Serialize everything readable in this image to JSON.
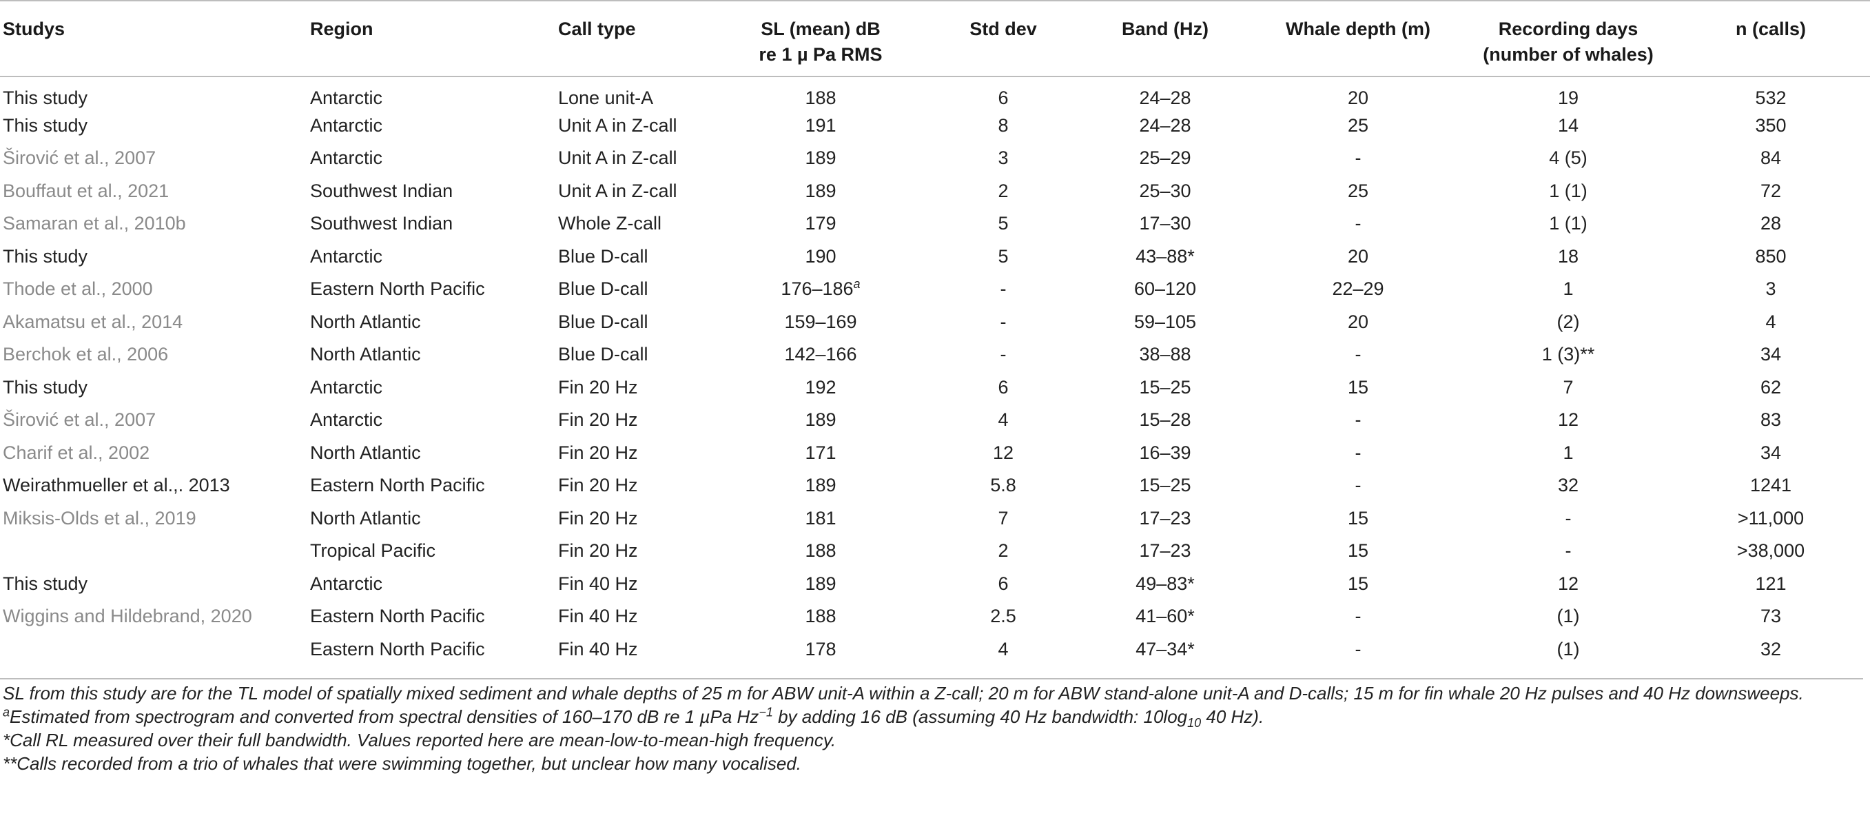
{
  "headers": [
    "Studys",
    "Region",
    "Call type",
    "SL (mean) dB re 1 µ Pa RMS",
    "Std dev",
    "Band (Hz)",
    "Whale depth (m)",
    "Recording days (number of whales)",
    "n (calls)"
  ],
  "header_lines": {
    "sl_line1": "SL (mean) dB",
    "sl_line2": "re 1 µ Pa RMS",
    "rec_line1": "Recording days",
    "rec_line2": "(number of whales)"
  },
  "rows": [
    {
      "study": "This study",
      "ref": false,
      "region": "Antarctic",
      "call": "Lone unit-A",
      "sl": "188",
      "sl_sup": "",
      "std": "6",
      "band": "24–28",
      "depth": "20",
      "days": "19",
      "n": "532"
    },
    {
      "study": "This study",
      "ref": false,
      "region": "Antarctic",
      "call": "Unit A in Z-call",
      "sl": "191",
      "sl_sup": "",
      "std": "8",
      "band": "24–28",
      "depth": "25",
      "days": "14",
      "n": "350"
    },
    {
      "study": "Širović et al., 2007",
      "ref": true,
      "region": "Antarctic",
      "call": "Unit A in Z-call",
      "sl": "189",
      "sl_sup": "",
      "std": "3",
      "band": "25–29",
      "depth": "-",
      "days": "4 (5)",
      "n": "84"
    },
    {
      "study": "Bouffaut et al., 2021",
      "ref": true,
      "region": "Southwest Indian",
      "call": "Unit A in Z-call",
      "sl": "189",
      "sl_sup": "",
      "std": "2",
      "band": "25–30",
      "depth": "25",
      "days": "1 (1)",
      "n": "72"
    },
    {
      "study": "Samaran et al., 2010b",
      "ref": true,
      "region": "Southwest Indian",
      "call": "Whole Z-call",
      "sl": "179",
      "sl_sup": "",
      "std": "5",
      "band": "17–30",
      "depth": "-",
      "days": "1 (1)",
      "n": "28"
    },
    {
      "study": "This study",
      "ref": false,
      "region": "Antarctic",
      "call": "Blue D-call",
      "sl": "190",
      "sl_sup": "",
      "std": "5",
      "band": "43–88*",
      "depth": "20",
      "days": "18",
      "n": "850"
    },
    {
      "study": "Thode et al., 2000",
      "ref": true,
      "region": "Eastern North Pacific",
      "call": "Blue D-call",
      "sl": "176–186",
      "sl_sup": "a",
      "std": "-",
      "band": "60–120",
      "depth": "22–29",
      "days": "1",
      "n": "3"
    },
    {
      "study": "Akamatsu et al., 2014",
      "ref": true,
      "region": "North Atlantic",
      "call": "Blue D-call",
      "sl": "159–169",
      "sl_sup": "",
      "std": "-",
      "band": "59–105",
      "depth": "20",
      "days": "(2)",
      "n": "4"
    },
    {
      "study": "Berchok et al., 2006",
      "ref": true,
      "region": "North Atlantic",
      "call": "Blue D-call",
      "sl": "142–166",
      "sl_sup": "",
      "std": "-",
      "band": "38–88",
      "depth": "-",
      "days": "1 (3)**",
      "n": "34"
    },
    {
      "study": "This study",
      "ref": false,
      "region": "Antarctic",
      "call": "Fin 20 Hz",
      "sl": "192",
      "sl_sup": "",
      "std": "6",
      "band": "15–25",
      "depth": "15",
      "days": "7",
      "n": "62"
    },
    {
      "study": "Širović et al., 2007",
      "ref": true,
      "region": "Antarctic",
      "call": "Fin 20 Hz",
      "sl": "189",
      "sl_sup": "",
      "std": "4",
      "band": "15–28",
      "depth": "-",
      "days": "12",
      "n": "83"
    },
    {
      "study": "Charif et al., 2002",
      "ref": true,
      "region": "North Atlantic",
      "call": "Fin 20 Hz",
      "sl": "171",
      "sl_sup": "",
      "std": "12",
      "band": "16–39",
      "depth": "-",
      "days": "1",
      "n": "34"
    },
    {
      "study": "Weirathmueller et al.,. 2013",
      "ref": false,
      "region": "Eastern North Pacific",
      "call": "Fin 20 Hz",
      "sl": "189",
      "sl_sup": "",
      "std": "5.8",
      "band": "15–25",
      "depth": "-",
      "days": "32",
      "n": "1241"
    },
    {
      "study": "Miksis-Olds et al., 2019",
      "ref": true,
      "region": "North Atlantic",
      "call": "Fin 20 Hz",
      "sl": "181",
      "sl_sup": "",
      "std": "7",
      "band": "17–23",
      "depth": "15",
      "days": "-",
      "n": ">11,000"
    },
    {
      "study": "",
      "ref": false,
      "region": "Tropical Pacific",
      "call": "Fin 20 Hz",
      "sl": "188",
      "sl_sup": "",
      "std": "2",
      "band": "17–23",
      "depth": "15",
      "days": "-",
      "n": ">38,000"
    },
    {
      "study": "This study",
      "ref": false,
      "region": "Antarctic",
      "call": "Fin 40 Hz",
      "sl": "189",
      "sl_sup": "",
      "std": "6",
      "band": "49–83*",
      "depth": "15",
      "days": "12",
      "n": "121"
    },
    {
      "study": "Wiggins and Hildebrand, 2020",
      "ref": true,
      "region": "Eastern North Pacific",
      "call": "Fin 40 Hz",
      "sl": "188",
      "sl_sup": "",
      "std": "2.5",
      "band": "41–60*",
      "depth": "-",
      "days": "(1)",
      "n": "73"
    },
    {
      "study": "",
      "ref": false,
      "region": "Eastern North Pacific",
      "call": "Fin 40 Hz",
      "sl": "178",
      "sl_sup": "",
      "std": "4",
      "band": "47–34*",
      "depth": "-",
      "days": "(1)",
      "n": "32"
    }
  ],
  "notes": {
    "n1": "SL from this study are for the TL model of spatially mixed sediment and whale depths of 25 m for ABW unit-A within a Z-call; 20 m for ABW stand-alone unit-A and D-calls; 15 m for fin whale 20 Hz pulses and 40 Hz downsweeps.",
    "n2_mark": "a",
    "n2_a": "Estimated from spectrogram and converted from spectral densities of 160–170 dB re 1 µPa Hz",
    "n2_sup": "−1",
    "n2_b": " by adding 16 dB (assuming 40 Hz bandwidth: 10log",
    "n2_sub": "10",
    "n2_c": " 40 Hz).",
    "n3": "*Call RL measured over their full bandwidth. Values reported here are mean-low-to-mean-high frequency.",
    "n4": "**Calls recorded from a trio of whales that were swimming together, but unclear how many vocalised."
  }
}
